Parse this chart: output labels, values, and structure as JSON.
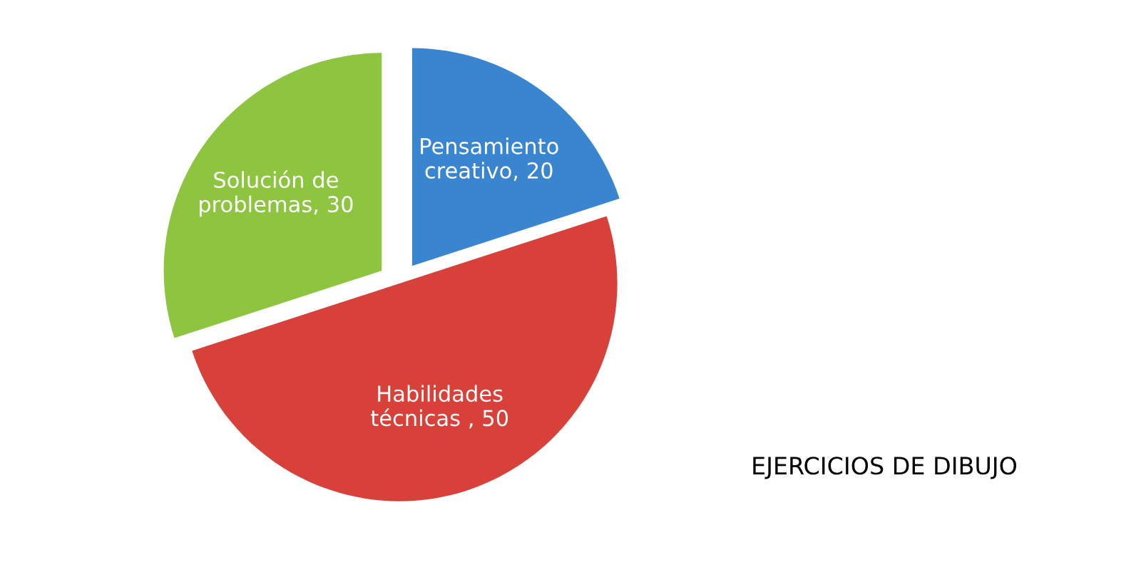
{
  "chart_data": {
    "type": "pie",
    "title": "EJERCICIOS DE DIBUJO",
    "categories": [
      "Pensamiento\ncreativo, 20",
      "Habilidades\ntécnicas , 50",
      "Solución de\nproblemas, 30"
    ],
    "values": [
      20,
      50,
      30
    ],
    "colors": [
      "#3a85cf",
      "#d8413a",
      "#8dc540"
    ],
    "legend": false
  }
}
